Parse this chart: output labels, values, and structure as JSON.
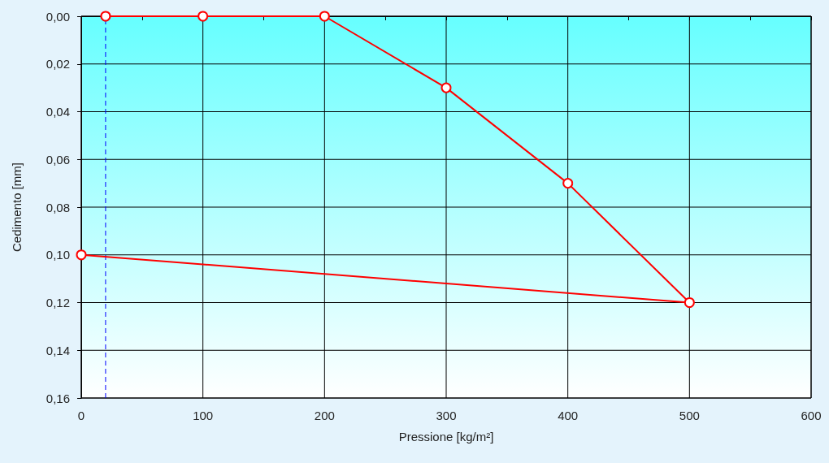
{
  "chart_data": {
    "type": "line",
    "xlabel": "Pressione [kg/m²]",
    "ylabel": "Cedimento [mm]",
    "x": [
      20,
      100,
      200,
      300,
      400,
      500,
      0
    ],
    "series": [
      {
        "color": "#ff0000",
        "values": [
          0,
          0,
          0,
          0.03,
          0.07,
          0.12,
          0.1
        ]
      }
    ],
    "marker": "circle",
    "line_style": "solid",
    "grid": true,
    "xlim": [
      0,
      600
    ],
    "xticks": [
      0,
      {
        "value": 50,
        "label": null
      },
      100,
      {
        "value": 150,
        "label": null
      },
      200,
      {
        "value": 250,
        "label": null
      },
      300,
      {
        "value": 350,
        "label": null
      },
      400,
      {
        "value": 450,
        "label": null
      },
      500,
      {
        "value": 550,
        "label": null
      },
      600
    ],
    "ylim": [
      0.16,
      0
    ],
    "yticks": [
      {
        "value": 0,
        "label": "0,00"
      },
      {
        "value": 0.02,
        "label": "0,02"
      },
      {
        "value": 0.04,
        "label": "0,04"
      },
      {
        "value": 0.06,
        "label": "0,06"
      },
      {
        "value": 0.08,
        "label": "0,08"
      },
      {
        "value": 0.1,
        "label": "0,10"
      },
      {
        "value": 0.12,
        "label": "0,12"
      },
      {
        "value": 0.14,
        "label": "0,14"
      },
      {
        "value": 0.16,
        "label": "0,16"
      }
    ],
    "ref_lines": [
      {
        "axis": "x",
        "value": 20,
        "color": "#0000ff",
        "line_style": "dashed"
      }
    ]
  }
}
